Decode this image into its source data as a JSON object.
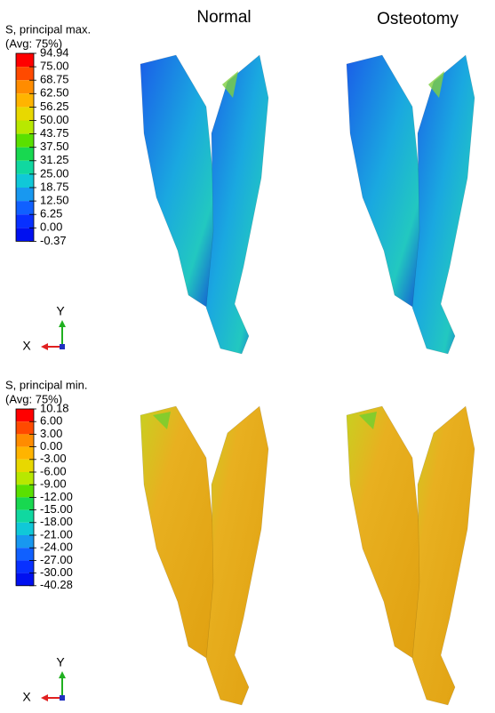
{
  "header": {
    "columns": [
      "Normal",
      "Osteotomy"
    ]
  },
  "panels": [
    {
      "legend": {
        "title": "S, principal max.",
        "subtitle": "(Avg: 75%)",
        "labels": [
          "94.94",
          "75.00",
          "68.75",
          "62.50",
          "56.25",
          "50.00",
          "43.75",
          "37.50",
          "31.25",
          "25.00",
          "18.75",
          "12.50",
          "6.25",
          "0.00",
          "-0.37"
        ]
      },
      "triad": {
        "y": "Y",
        "x": "X"
      }
    },
    {
      "legend": {
        "title": "S, principal min.",
        "subtitle": "(Avg: 75%)",
        "labels": [
          "10.18",
          "6.00",
          "3.00",
          "0.00",
          "-3.00",
          "-6.00",
          "-9.00",
          "-12.00",
          "-15.00",
          "-18.00",
          "-21.00",
          "-24.00",
          "-27.00",
          "-30.00",
          "-40.28"
        ]
      },
      "triad": {
        "y": "Y",
        "x": "X"
      }
    }
  ]
}
